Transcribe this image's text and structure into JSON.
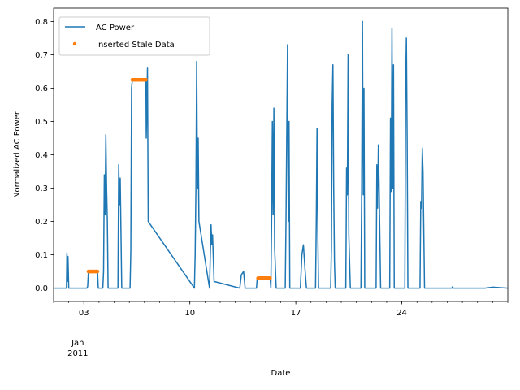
{
  "chart_data": {
    "type": "line",
    "title": "",
    "xlabel": "Date",
    "ylabel": "Normalized AC Power",
    "x_unit": "day of January 2011",
    "xlim": [
      1,
      31
    ],
    "ylim": [
      -0.04,
      0.84
    ],
    "x_ticks": [
      {
        "value": 3,
        "label": "03"
      },
      {
        "value": 10,
        "label": "10"
      },
      {
        "value": 17,
        "label": "17"
      },
      {
        "value": 24,
        "label": "24"
      }
    ],
    "x_month_label": [
      "Jan",
      "2011"
    ],
    "y_ticks": [
      {
        "value": 0.0,
        "label": "0.0"
      },
      {
        "value": 0.1,
        "label": "0.1"
      },
      {
        "value": 0.2,
        "label": "0.2"
      },
      {
        "value": 0.3,
        "label": "0.3"
      },
      {
        "value": 0.4,
        "label": "0.4"
      },
      {
        "value": 0.5,
        "label": "0.5"
      },
      {
        "value": 0.6,
        "label": "0.6"
      },
      {
        "value": 0.7,
        "label": "0.7"
      },
      {
        "value": 0.8,
        "label": "0.8"
      }
    ],
    "grid": false,
    "legend_position": "top-left",
    "series": [
      {
        "name": "AC Power",
        "color": "#1f77b4",
        "style": "line",
        "points": [
          [
            1.0,
            0.0
          ],
          [
            1.8,
            0.0
          ],
          [
            1.85,
            0.0
          ],
          [
            1.88,
            0.105
          ],
          [
            1.92,
            0.02
          ],
          [
            1.95,
            0.095
          ],
          [
            2.0,
            0.0
          ],
          [
            3.2,
            0.0
          ],
          [
            3.25,
            0.005
          ],
          [
            3.3,
            0.05
          ],
          [
            3.9,
            0.05
          ],
          [
            3.95,
            0.0
          ],
          [
            4.25,
            0.0
          ],
          [
            4.3,
            0.05
          ],
          [
            4.35,
            0.34
          ],
          [
            4.4,
            0.22
          ],
          [
            4.45,
            0.46
          ],
          [
            4.5,
            0.3
          ],
          [
            4.55,
            0.2
          ],
          [
            4.6,
            0.0
          ],
          [
            5.25,
            0.0
          ],
          [
            5.3,
            0.37
          ],
          [
            5.35,
            0.25
          ],
          [
            5.4,
            0.33
          ],
          [
            5.5,
            0.0
          ],
          [
            6.05,
            0.0
          ],
          [
            6.1,
            0.11
          ],
          [
            6.15,
            0.6
          ],
          [
            6.2,
            0.625
          ],
          [
            7.1,
            0.625
          ],
          [
            7.12,
            0.45
          ],
          [
            7.2,
            0.66
          ],
          [
            7.25,
            0.2
          ],
          [
            10.3,
            0.0
          ],
          [
            10.35,
            0.1
          ],
          [
            10.4,
            0.3
          ],
          [
            10.45,
            0.68
          ],
          [
            10.5,
            0.3
          ],
          [
            10.55,
            0.45
          ],
          [
            10.6,
            0.2
          ],
          [
            11.3,
            0.0
          ],
          [
            11.35,
            0.1
          ],
          [
            11.4,
            0.19
          ],
          [
            11.45,
            0.13
          ],
          [
            11.5,
            0.16
          ],
          [
            11.6,
            0.02
          ],
          [
            13.3,
            0.0
          ],
          [
            13.4,
            0.04
          ],
          [
            13.55,
            0.05
          ],
          [
            13.65,
            0.0
          ],
          [
            14.4,
            0.0
          ],
          [
            14.45,
            0.03
          ],
          [
            15.3,
            0.03
          ],
          [
            15.35,
            0.0
          ],
          [
            15.4,
            0.2
          ],
          [
            15.45,
            0.5
          ],
          [
            15.5,
            0.22
          ],
          [
            15.55,
            0.54
          ],
          [
            15.6,
            0.12
          ],
          [
            15.7,
            0.0
          ],
          [
            16.3,
            0.0
          ],
          [
            16.35,
            0.2
          ],
          [
            16.45,
            0.73
          ],
          [
            16.5,
            0.2
          ],
          [
            16.55,
            0.5
          ],
          [
            16.6,
            0.0
          ],
          [
            17.3,
            0.0
          ],
          [
            17.4,
            0.1
          ],
          [
            17.5,
            0.13
          ],
          [
            17.6,
            0.06
          ],
          [
            17.7,
            0.0
          ],
          [
            18.3,
            0.0
          ],
          [
            18.35,
            0.2
          ],
          [
            18.4,
            0.48
          ],
          [
            18.45,
            0.17
          ],
          [
            18.5,
            0.0
          ],
          [
            19.3,
            0.0
          ],
          [
            19.35,
            0.12
          ],
          [
            19.4,
            0.55
          ],
          [
            19.45,
            0.67
          ],
          [
            19.5,
            0.3
          ],
          [
            19.55,
            0.08
          ],
          [
            19.6,
            0.0
          ],
          [
            20.3,
            0.0
          ],
          [
            20.35,
            0.36
          ],
          [
            20.4,
            0.28
          ],
          [
            20.45,
            0.7
          ],
          [
            20.5,
            0.16
          ],
          [
            20.6,
            0.0
          ],
          [
            21.3,
            0.0
          ],
          [
            21.35,
            0.3
          ],
          [
            21.4,
            0.8
          ],
          [
            21.45,
            0.28
          ],
          [
            21.5,
            0.6
          ],
          [
            21.55,
            0.0
          ],
          [
            22.3,
            0.0
          ],
          [
            22.35,
            0.37
          ],
          [
            22.4,
            0.24
          ],
          [
            22.45,
            0.43
          ],
          [
            22.5,
            0.3
          ],
          [
            22.6,
            0.0
          ],
          [
            23.2,
            0.0
          ],
          [
            23.25,
            0.51
          ],
          [
            23.3,
            0.29
          ],
          [
            23.35,
            0.78
          ],
          [
            23.4,
            0.3
          ],
          [
            23.45,
            0.67
          ],
          [
            23.5,
            0.0
          ],
          [
            24.2,
            0.0
          ],
          [
            24.25,
            0.6
          ],
          [
            24.3,
            0.75
          ],
          [
            24.35,
            0.45
          ],
          [
            24.4,
            0.0
          ],
          [
            25.2,
            0.0
          ],
          [
            25.25,
            0.26
          ],
          [
            25.3,
            0.24
          ],
          [
            25.35,
            0.42
          ],
          [
            25.4,
            0.35
          ],
          [
            25.5,
            0.0
          ],
          [
            26.0,
            0.0
          ],
          [
            27.3,
            0.0
          ],
          [
            27.35,
            0.004
          ],
          [
            27.4,
            0.0
          ],
          [
            29.5,
            0.0
          ],
          [
            30.0,
            0.003
          ],
          [
            31.0,
            0.0
          ]
        ]
      },
      {
        "name": "Inserted Stale Data",
        "color": "#ff7f0e",
        "style": "scatter",
        "runs": [
          {
            "x_start": 3.3,
            "x_end": 3.9,
            "y": 0.05
          },
          {
            "x_start": 6.2,
            "x_end": 7.1,
            "y": 0.625
          },
          {
            "x_start": 14.5,
            "x_end": 15.3,
            "y": 0.03
          }
        ]
      }
    ]
  }
}
